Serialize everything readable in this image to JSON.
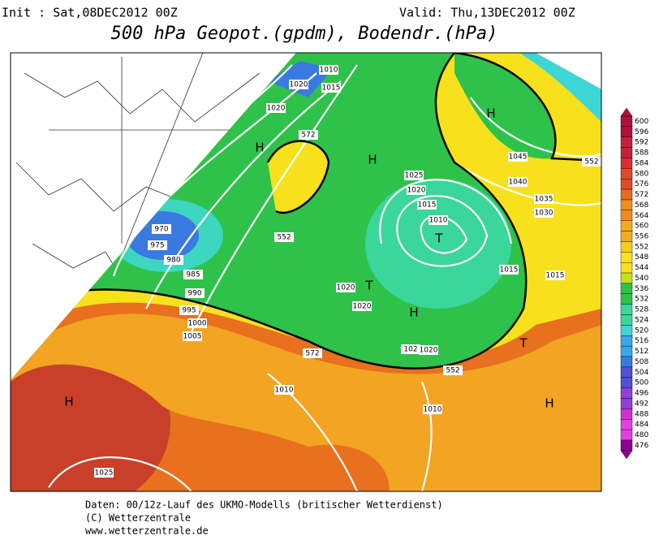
{
  "header": {
    "init": "Init : Sat,08DEC2012 00Z",
    "valid": "Valid: Thu,13DEC2012 00Z",
    "title": "500 hPa Geopot.(gpdm), Bodendr.(hPa)"
  },
  "colorbar": {
    "labels": [
      600,
      596,
      592,
      588,
      584,
      580,
      576,
      572,
      568,
      564,
      560,
      556,
      552,
      548,
      544,
      540,
      536,
      532,
      528,
      524,
      520,
      516,
      512,
      508,
      504,
      500,
      496,
      492,
      488,
      484,
      480,
      476
    ]
  },
  "map_labels": [
    "1010",
    "1020",
    "1015",
    "1020",
    "572",
    "H",
    "1025",
    "1020",
    "1015",
    "1010",
    "T",
    "970",
    "975",
    "980",
    "985",
    "990",
    "995",
    "1000",
    "1005",
    "552",
    "1020",
    "T",
    "1020",
    "H",
    "1015",
    "1015",
    "1045",
    "1040",
    "1035",
    "1030",
    "H",
    "552",
    "H",
    "572",
    "1020",
    "102",
    "552",
    "T",
    "1010",
    "1010",
    "H",
    "H",
    "1025"
  ],
  "footer": [
    "Daten: 00/12z-Lauf des UKMO-Modells (britischer Wetterdienst)",
    "(C) Wetterzentrale",
    "www.wetterzentrale.de"
  ]
}
